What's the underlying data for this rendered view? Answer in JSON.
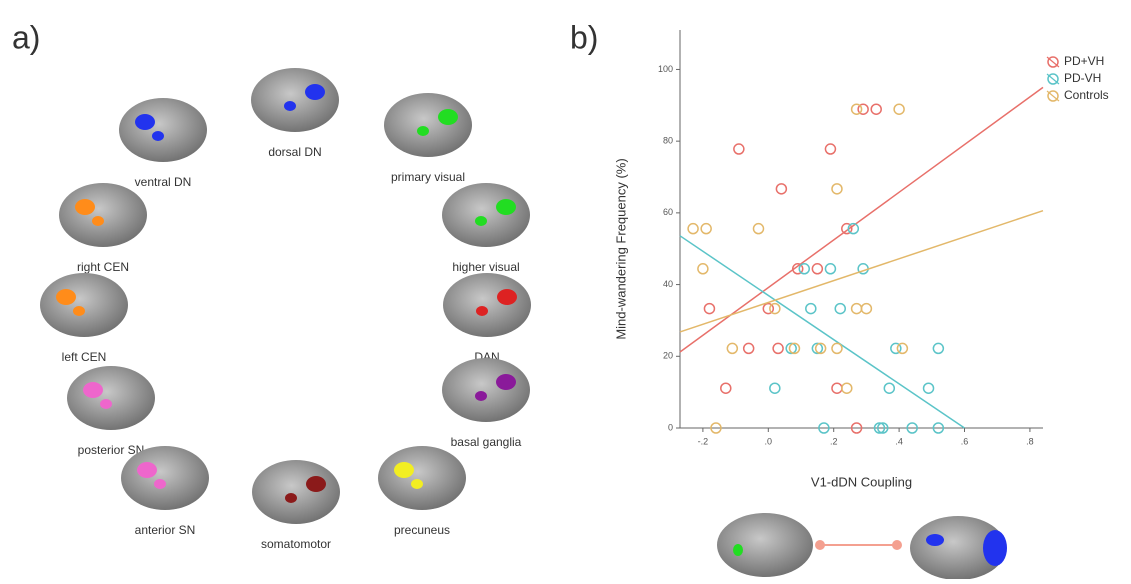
{
  "panel_a": {
    "label": "a)",
    "networks": [
      "dorsal DN",
      "ventral DN",
      "primary visual",
      "right CEN",
      "higher visual",
      "left CEN",
      "DAN",
      "posterior SN",
      "basal ganglia",
      "anterior SN",
      "somatomotor",
      "precuneus"
    ]
  },
  "chart_data": {
    "type": "scatter",
    "panel_label": "b)",
    "x_label": "V1-dDN Coupling",
    "y_label": "Mind-wandering Frequency (%)",
    "xlim": [
      -0.27,
      0.84
    ],
    "ylim": [
      0,
      111
    ],
    "xticks": [
      {
        "value": -0.2,
        "label": "-.2"
      },
      {
        "value": 0,
        "label": ".0"
      },
      {
        "value": 0.2,
        "label": ".2"
      },
      {
        "value": 0.4,
        "label": ".4"
      },
      {
        "value": 0.6,
        "label": ".6"
      },
      {
        "value": 0.8,
        "label": ".8"
      }
    ],
    "yticks": [
      0,
      20,
      40,
      60,
      80,
      100
    ],
    "legend": "top-right",
    "series": [
      {
        "name": "PD+VH",
        "color": "#e8706a",
        "x": [
          -0.18,
          -0.13,
          -0.09,
          -0.06,
          0.0,
          0.03,
          0.04,
          0.09,
          0.15,
          0.19,
          0.21,
          0.24,
          0.27,
          0.29,
          0.33
        ],
        "values": [
          33.3,
          11.1,
          77.8,
          22.2,
          33.3,
          22.2,
          66.7,
          44.4,
          44.4,
          77.8,
          11.1,
          55.6,
          0,
          88.9,
          88.9
        ],
        "fit": {
          "x": [
            -0.27,
            0.84
          ],
          "y": [
            21.2,
            95
          ]
        }
      },
      {
        "name": "PD-VH",
        "color": "#5bc4c8",
        "x": [
          0.02,
          0.07,
          0.11,
          0.13,
          0.15,
          0.17,
          0.19,
          0.22,
          0.26,
          0.29,
          0.34,
          0.35,
          0.37,
          0.39,
          0.44,
          0.49,
          0.52,
          0.52
        ],
        "values": [
          11.1,
          22.2,
          44.4,
          33.3,
          22.2,
          0,
          44.4,
          33.3,
          55.6,
          44.4,
          0,
          0,
          11.1,
          22.2,
          0,
          11.1,
          0,
          22.2
        ],
        "fit": {
          "x": [
            -0.27,
            0.6
          ],
          "y": [
            53.6,
            0
          ]
        }
      },
      {
        "name": "Controls",
        "color": "#e3b86a",
        "x": [
          -0.23,
          -0.19,
          -0.2,
          -0.16,
          -0.11,
          -0.03,
          0.02,
          0.08,
          0.16,
          0.21,
          0.21,
          0.24,
          0.27,
          0.27,
          0.3,
          0.4,
          0.41
        ],
        "values": [
          55.6,
          55.6,
          44.4,
          0,
          22.2,
          55.6,
          33.3,
          22.2,
          22.2,
          22.2,
          66.7,
          11.1,
          33.3,
          88.9,
          33.3,
          88.9,
          22.2
        ],
        "fit": {
          "x": [
            -0.27,
            0.84
          ],
          "y": [
            26.8,
            60.6
          ]
        }
      }
    ]
  }
}
